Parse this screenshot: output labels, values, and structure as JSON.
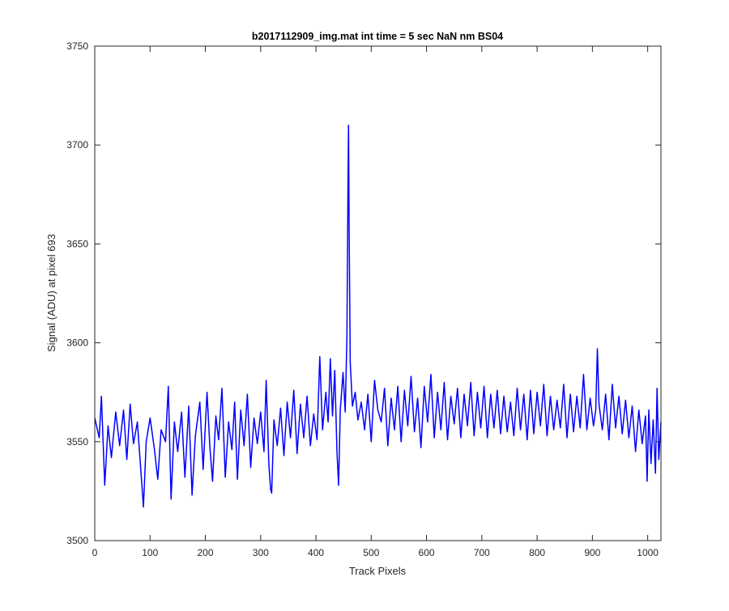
{
  "chart_data": {
    "type": "line",
    "title": "b2017112909_img.mat int time = 5 sec  NaN nm BS04",
    "xlabel": "Track Pixels",
    "ylabel": "Signal (ADU) at pixel 693",
    "xlim": [
      0,
      1024
    ],
    "ylim": [
      3500,
      3750
    ],
    "xticks": [
      0,
      100,
      200,
      300,
      400,
      500,
      600,
      700,
      800,
      900,
      1000
    ],
    "yticks": [
      3500,
      3550,
      3600,
      3650,
      3700,
      3750
    ],
    "grid": false,
    "box": true,
    "series": [
      {
        "color": "#0000ff",
        "points": [
          [
            0,
            3562
          ],
          [
            8,
            3552
          ],
          [
            12,
            3573
          ],
          [
            18,
            3528
          ],
          [
            24,
            3558
          ],
          [
            30,
            3542
          ],
          [
            38,
            3565
          ],
          [
            45,
            3548
          ],
          [
            52,
            3566
          ],
          [
            58,
            3541
          ],
          [
            64,
            3569
          ],
          [
            70,
            3549
          ],
          [
            77,
            3560
          ],
          [
            84,
            3533
          ],
          [
            88,
            3517
          ],
          [
            93,
            3550
          ],
          [
            100,
            3562
          ],
          [
            108,
            3546
          ],
          [
            114,
            3531
          ],
          [
            120,
            3556
          ],
          [
            128,
            3550
          ],
          [
            133,
            3578
          ],
          [
            138,
            3521
          ],
          [
            144,
            3560
          ],
          [
            150,
            3545
          ],
          [
            157,
            3565
          ],
          [
            163,
            3532
          ],
          [
            170,
            3568
          ],
          [
            176,
            3523
          ],
          [
            182,
            3553
          ],
          [
            190,
            3570
          ],
          [
            196,
            3536
          ],
          [
            203,
            3575
          ],
          [
            208,
            3548
          ],
          [
            213,
            3530
          ],
          [
            219,
            3563
          ],
          [
            224,
            3551
          ],
          [
            230,
            3577
          ],
          [
            236,
            3532
          ],
          [
            242,
            3560
          ],
          [
            248,
            3546
          ],
          [
            253,
            3570
          ],
          [
            258,
            3531
          ],
          [
            264,
            3566
          ],
          [
            270,
            3548
          ],
          [
            276,
            3574
          ],
          [
            282,
            3537
          ],
          [
            288,
            3562
          ],
          [
            294,
            3549
          ],
          [
            300,
            3565
          ],
          [
            306,
            3545
          ],
          [
            310,
            3581
          ],
          [
            315,
            3538
          ],
          [
            318,
            3526
          ],
          [
            320,
            3524
          ],
          [
            324,
            3561
          ],
          [
            330,
            3548
          ],
          [
            336,
            3567
          ],
          [
            342,
            3543
          ],
          [
            348,
            3570
          ],
          [
            354,
            3552
          ],
          [
            360,
            3576
          ],
          [
            366,
            3544
          ],
          [
            372,
            3569
          ],
          [
            378,
            3552
          ],
          [
            384,
            3573
          ],
          [
            390,
            3548
          ],
          [
            396,
            3564
          ],
          [
            402,
            3551
          ],
          [
            407,
            3593
          ],
          [
            412,
            3556
          ],
          [
            418,
            3575
          ],
          [
            422,
            3560
          ],
          [
            426,
            3592
          ],
          [
            430,
            3563
          ],
          [
            434,
            3586
          ],
          [
            438,
            3545
          ],
          [
            441,
            3528
          ],
          [
            444,
            3566
          ],
          [
            449,
            3585
          ],
          [
            453,
            3565
          ],
          [
            456,
            3603
          ],
          [
            458,
            3680
          ],
          [
            459,
            3710
          ],
          [
            460,
            3660
          ],
          [
            462,
            3590
          ],
          [
            466,
            3568
          ],
          [
            471,
            3575
          ],
          [
            476,
            3561
          ],
          [
            482,
            3570
          ],
          [
            488,
            3556
          ],
          [
            494,
            3574
          ],
          [
            500,
            3550
          ],
          [
            506,
            3581
          ],
          [
            512,
            3566
          ],
          [
            518,
            3560
          ],
          [
            524,
            3577
          ],
          [
            530,
            3548
          ],
          [
            536,
            3572
          ],
          [
            542,
            3556
          ],
          [
            548,
            3578
          ],
          [
            554,
            3550
          ],
          [
            560,
            3576
          ],
          [
            566,
            3558
          ],
          [
            572,
            3583
          ],
          [
            578,
            3555
          ],
          [
            584,
            3572
          ],
          [
            590,
            3547
          ],
          [
            596,
            3578
          ],
          [
            602,
            3560
          ],
          [
            608,
            3584
          ],
          [
            614,
            3552
          ],
          [
            620,
            3575
          ],
          [
            626,
            3556
          ],
          [
            632,
            3580
          ],
          [
            638,
            3551
          ],
          [
            644,
            3573
          ],
          [
            650,
            3559
          ],
          [
            656,
            3577
          ],
          [
            662,
            3552
          ],
          [
            668,
            3574
          ],
          [
            674,
            3558
          ],
          [
            680,
            3580
          ],
          [
            686,
            3553
          ],
          [
            692,
            3575
          ],
          [
            698,
            3557
          ],
          [
            704,
            3578
          ],
          [
            710,
            3552
          ],
          [
            716,
            3574
          ],
          [
            722,
            3557
          ],
          [
            728,
            3576
          ],
          [
            734,
            3554
          ],
          [
            740,
            3573
          ],
          [
            746,
            3555
          ],
          [
            752,
            3570
          ],
          [
            758,
            3553
          ],
          [
            764,
            3577
          ],
          [
            770,
            3556
          ],
          [
            776,
            3574
          ],
          [
            782,
            3551
          ],
          [
            788,
            3576
          ],
          [
            794,
            3554
          ],
          [
            800,
            3575
          ],
          [
            806,
            3558
          ],
          [
            812,
            3579
          ],
          [
            818,
            3553
          ],
          [
            824,
            3573
          ],
          [
            830,
            3556
          ],
          [
            836,
            3571
          ],
          [
            842,
            3557
          ],
          [
            848,
            3579
          ],
          [
            854,
            3552
          ],
          [
            860,
            3574
          ],
          [
            866,
            3555
          ],
          [
            872,
            3573
          ],
          [
            878,
            3557
          ],
          [
            884,
            3584
          ],
          [
            890,
            3556
          ],
          [
            896,
            3572
          ],
          [
            902,
            3558
          ],
          [
            906,
            3566
          ],
          [
            909,
            3597
          ],
          [
            912,
            3569
          ],
          [
            918,
            3556
          ],
          [
            924,
            3574
          ],
          [
            930,
            3551
          ],
          [
            936,
            3579
          ],
          [
            942,
            3557
          ],
          [
            948,
            3573
          ],
          [
            954,
            3554
          ],
          [
            960,
            3571
          ],
          [
            966,
            3552
          ],
          [
            972,
            3568
          ],
          [
            978,
            3545
          ],
          [
            984,
            3566
          ],
          [
            990,
            3549
          ],
          [
            996,
            3563
          ],
          [
            999,
            3530
          ],
          [
            1002,
            3566
          ],
          [
            1006,
            3539
          ],
          [
            1010,
            3561
          ],
          [
            1014,
            3534
          ],
          [
            1017,
            3577
          ],
          [
            1020,
            3541
          ],
          [
            1024,
            3560
          ]
        ]
      }
    ]
  }
}
